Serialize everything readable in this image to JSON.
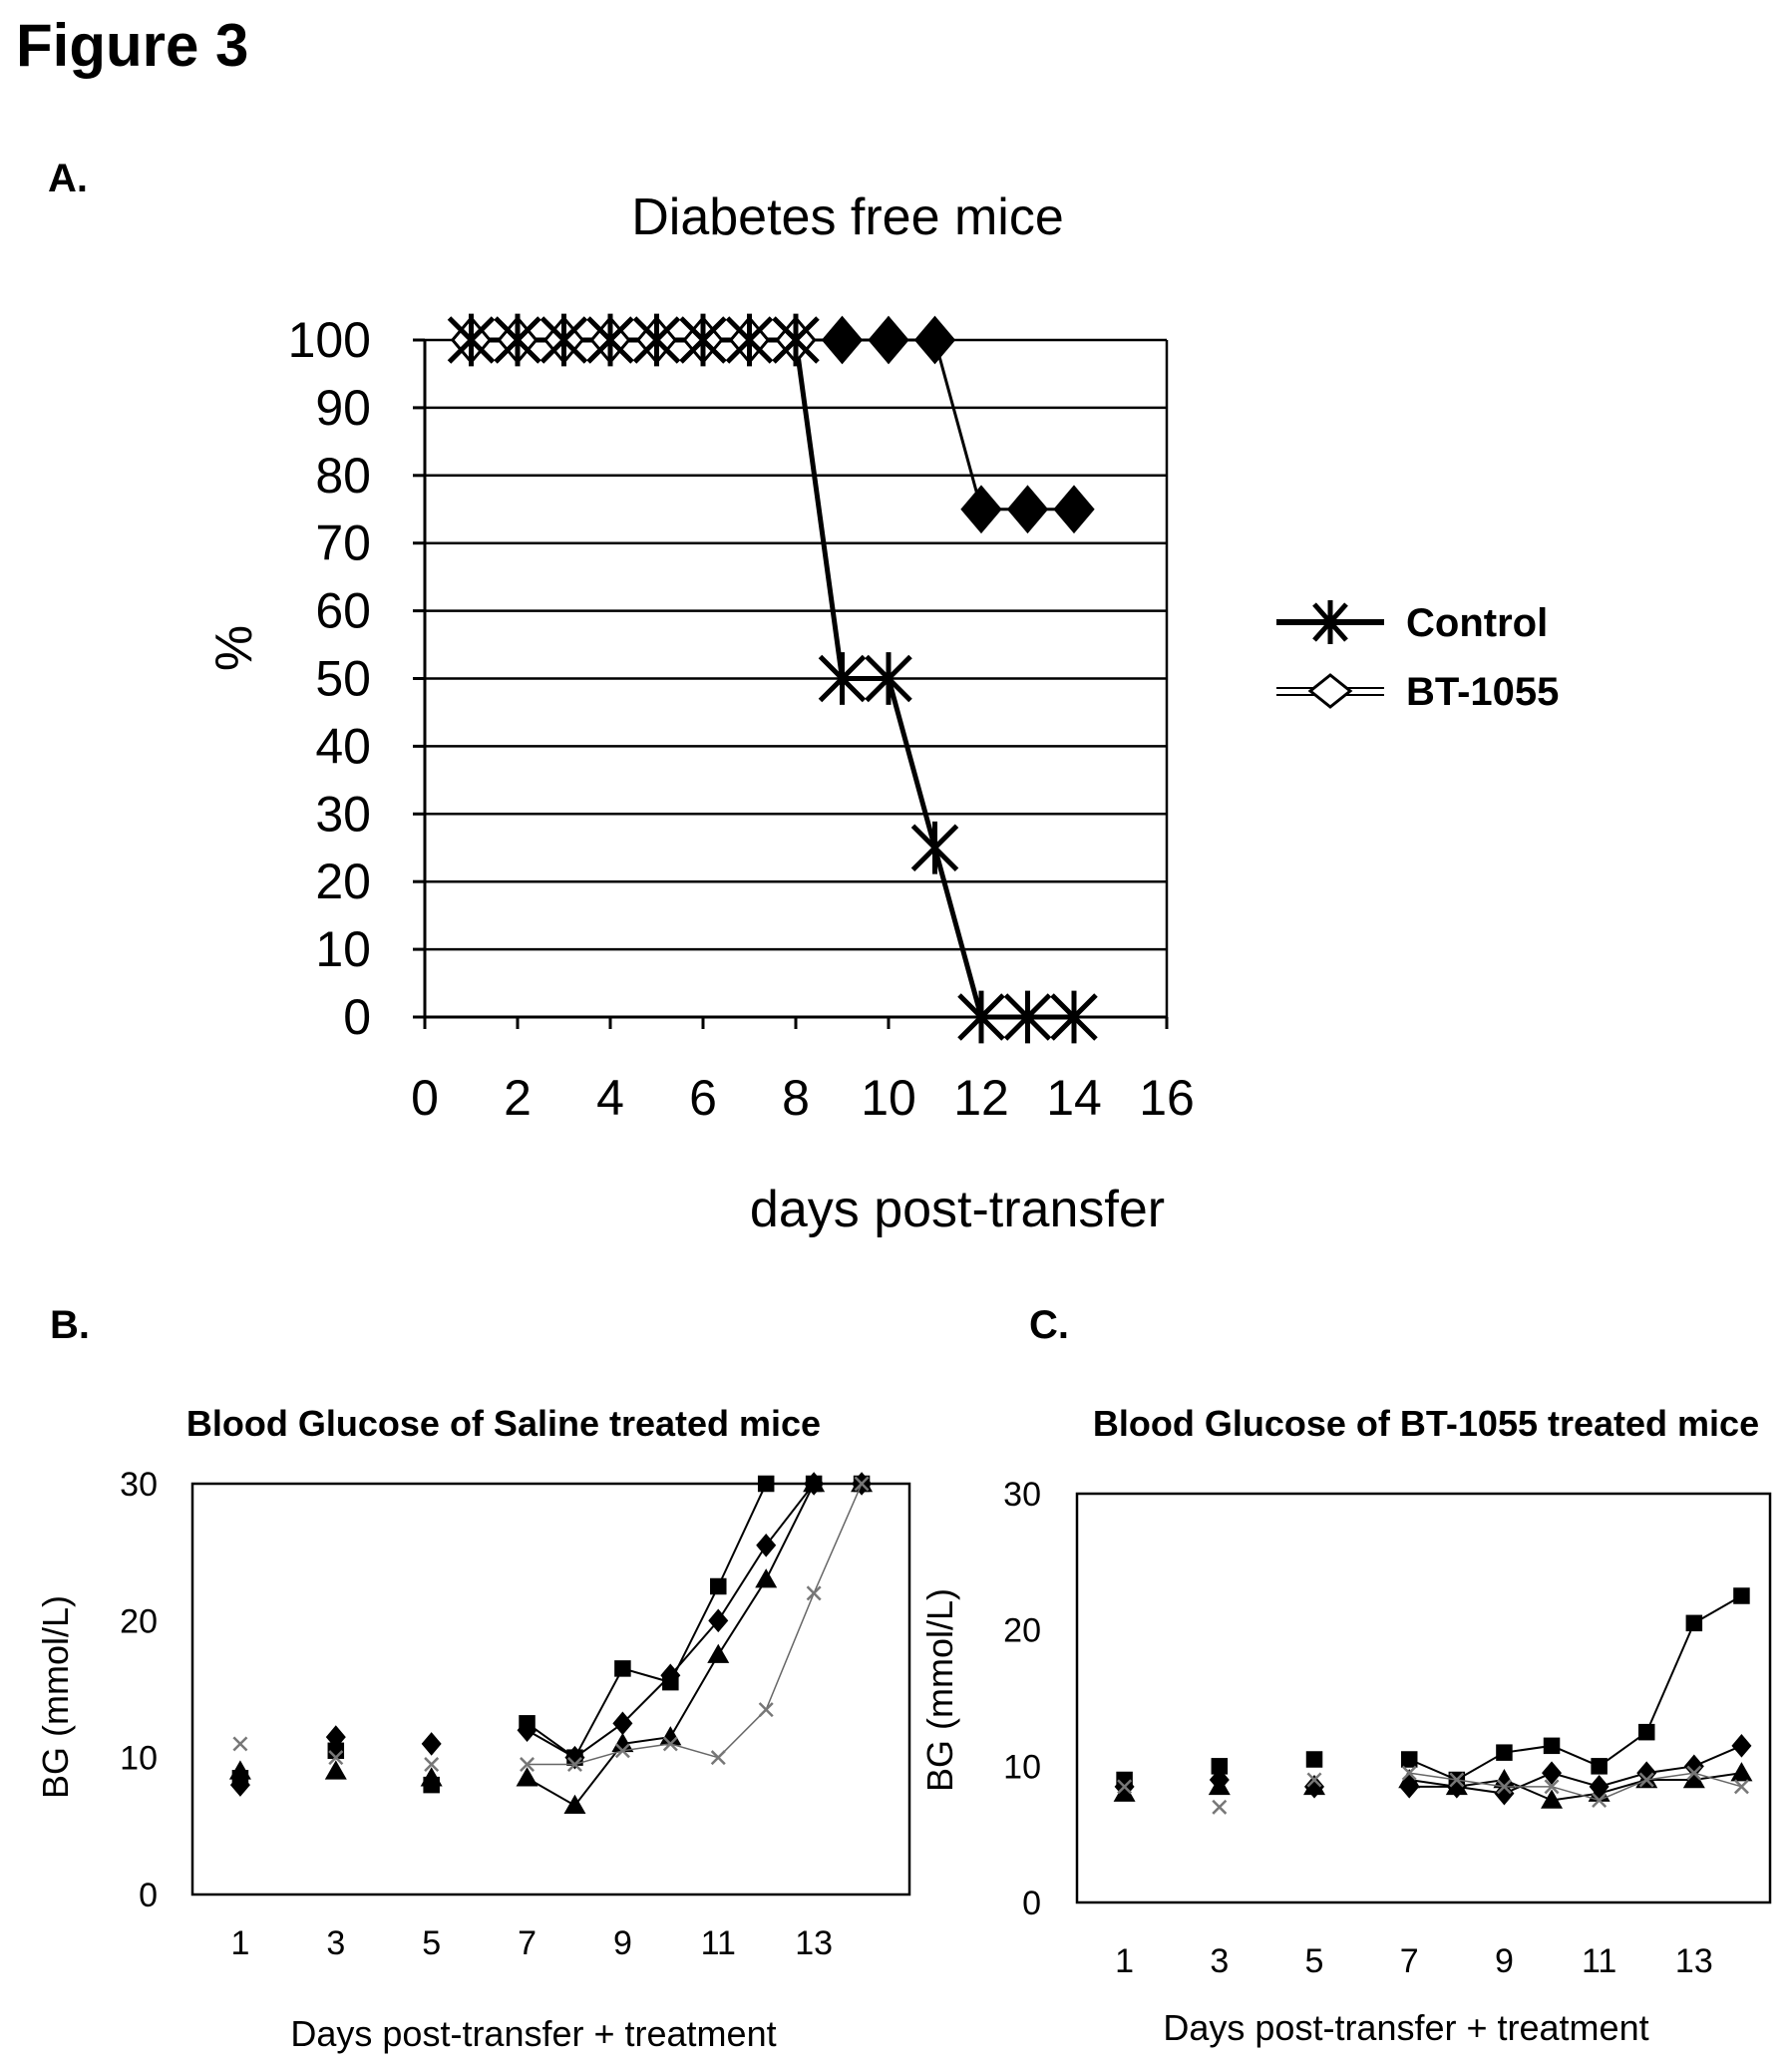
{
  "figure": {
    "title": "Figure 3"
  },
  "chart_data": [
    {
      "panel": "A.",
      "type": "line",
      "title": "Diabetes free mice",
      "xlabel": "days post-transfer",
      "ylabel": "%",
      "xlim": [
        0,
        16
      ],
      "ylim": [
        0,
        100
      ],
      "xticks": [
        0,
        2,
        4,
        6,
        8,
        10,
        12,
        14,
        16
      ],
      "yticks": [
        0,
        10,
        20,
        30,
        40,
        50,
        60,
        70,
        80,
        90,
        100
      ],
      "grid": "horizontal",
      "legend_position": "right",
      "series": [
        {
          "name": "Control",
          "marker": "star",
          "color": "#000000",
          "x": [
            1,
            2,
            3,
            4,
            5,
            6,
            7,
            8,
            9,
            10,
            11,
            12,
            13,
            14
          ],
          "y": [
            100,
            100,
            100,
            100,
            100,
            100,
            100,
            100,
            50,
            50,
            25,
            0,
            0,
            0
          ]
        },
        {
          "name": "BT-1055",
          "marker": "diamond",
          "color": "#000000",
          "x": [
            1,
            2,
            3,
            4,
            5,
            6,
            7,
            8,
            9,
            10,
            11,
            12,
            13,
            14
          ],
          "y": [
            100,
            100,
            100,
            100,
            100,
            100,
            100,
            100,
            100,
            100,
            100,
            75,
            75,
            75
          ]
        }
      ]
    },
    {
      "panel": "B.",
      "type": "line",
      "title": "Blood Glucose of Saline treated mice",
      "xlabel": "Days post-transfer + treatment",
      "ylabel": "BG (mmol/L)",
      "xlim": [
        0,
        15
      ],
      "ylim": [
        0,
        30
      ],
      "xticks": [
        1,
        3,
        5,
        7,
        9,
        11,
        13
      ],
      "yticks": [
        0,
        10,
        20,
        30
      ],
      "grid": "none",
      "series": [
        {
          "marker": "diamond",
          "x": [
            1,
            3,
            5,
            7,
            8,
            9,
            10,
            11,
            12,
            13,
            14
          ],
          "y": [
            8,
            11.5,
            11,
            12,
            10,
            12.5,
            16,
            20,
            25.5,
            30,
            30
          ]
        },
        {
          "marker": "square",
          "x": [
            1,
            3,
            5,
            7,
            8,
            9,
            10,
            11,
            12,
            13,
            14
          ],
          "y": [
            8.5,
            10.5,
            8,
            12.5,
            10,
            16.5,
            15.5,
            22.5,
            30,
            30,
            30
          ]
        },
        {
          "marker": "triangle",
          "x": [
            1,
            3,
            5,
            7,
            8,
            9,
            10,
            11,
            12,
            13,
            14
          ],
          "y": [
            9,
            9,
            8.5,
            8.5,
            6.5,
            11,
            11.5,
            17.5,
            23,
            30,
            30
          ]
        },
        {
          "marker": "x",
          "x": [
            1,
            3,
            5,
            7,
            8,
            9,
            10,
            11,
            12,
            13,
            14
          ],
          "y": [
            11,
            10,
            9.5,
            9.5,
            9.5,
            10.5,
            11,
            10,
            13.5,
            22,
            30
          ]
        }
      ]
    },
    {
      "panel": "C.",
      "type": "line",
      "title": "Blood Glucose of BT-1055 treated mice",
      "xlabel": "Days post-transfer + treatment",
      "ylabel": "BG (mmol/L)",
      "xlim": [
        0,
        14.6
      ],
      "ylim": [
        0,
        30
      ],
      "xticks": [
        1,
        3,
        5,
        7,
        9,
        11,
        13
      ],
      "yticks": [
        0,
        10,
        20,
        30
      ],
      "grid": "none",
      "series": [
        {
          "marker": "square",
          "x": [
            1,
            3,
            5,
            7,
            8,
            9,
            10,
            11,
            12,
            13,
            14
          ],
          "y": [
            9,
            10,
            10.5,
            10.5,
            9,
            11,
            11.5,
            10,
            12.5,
            20.5,
            22.5
          ]
        },
        {
          "marker": "diamond",
          "x": [
            1,
            3,
            5,
            7,
            8,
            9,
            10,
            11,
            12,
            13,
            14
          ],
          "y": [
            8.5,
            9,
            8.5,
            8.5,
            8.5,
            8,
            9.5,
            8.5,
            9.5,
            10,
            11.5
          ]
        },
        {
          "marker": "triangle",
          "x": [
            1,
            3,
            5,
            7,
            8,
            9,
            10,
            11,
            12,
            13,
            14
          ],
          "y": [
            8,
            8.5,
            8.5,
            9,
            8.5,
            9,
            7.5,
            8,
            9,
            9,
            9.5
          ]
        },
        {
          "marker": "x",
          "x": [
            1,
            3,
            5,
            7,
            8,
            9,
            10,
            11,
            12,
            13,
            14
          ],
          "y": [
            8.5,
            7,
            9,
            9.5,
            9,
            8.5,
            8.5,
            7.5,
            9,
            9.5,
            8.5
          ]
        }
      ]
    }
  ]
}
